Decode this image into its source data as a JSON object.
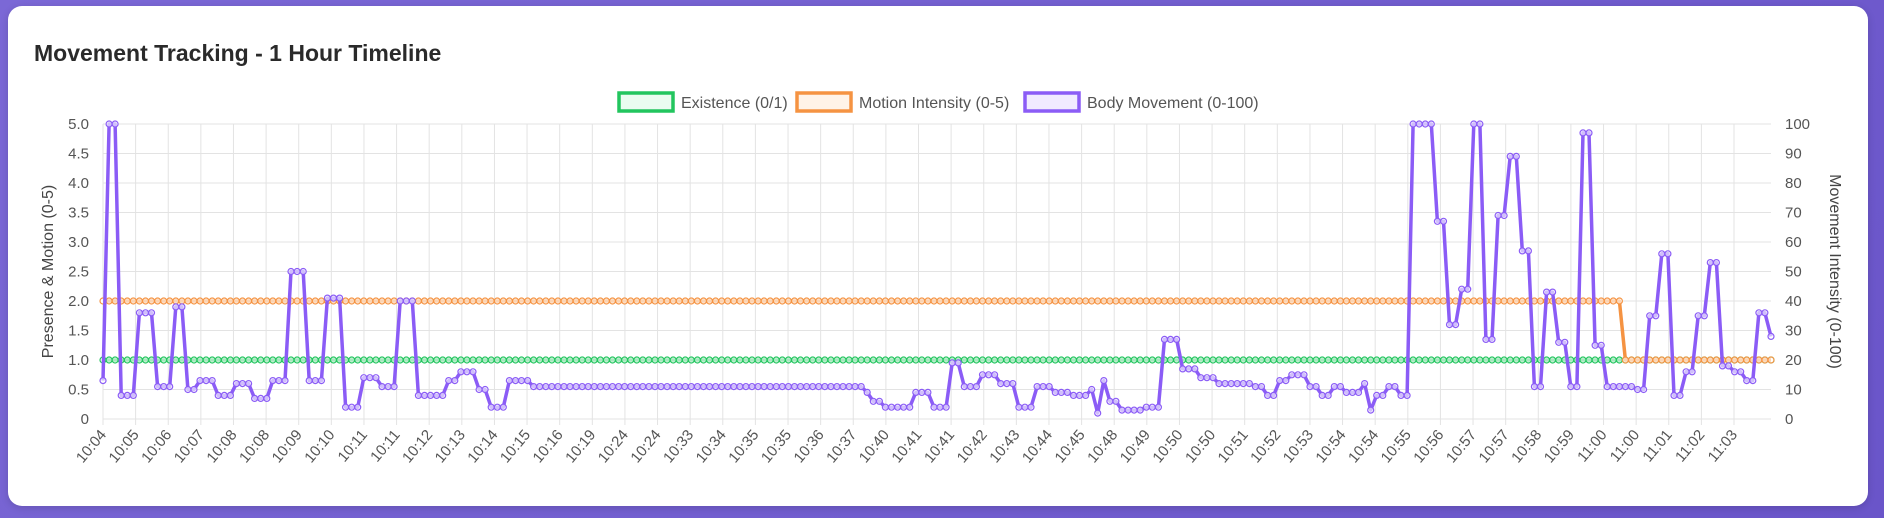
{
  "title": "Movement Tracking - 1 Hour Timeline",
  "chart_data": {
    "type": "line",
    "title": "Movement Tracking - 1 Hour Timeline",
    "legend_position": "top",
    "grid": true,
    "y_left": {
      "label": "Presence & Motion (0-5)",
      "ticks": [
        "0",
        "0.5",
        "1.0",
        "1.5",
        "2.0",
        "2.5",
        "3.0",
        "3.5",
        "4.0",
        "4.5",
        "5.0"
      ],
      "range": [
        0,
        5
      ]
    },
    "y_right": {
      "label": "Movement Intensity (0-100)",
      "ticks": [
        "0",
        "10",
        "20",
        "30",
        "40",
        "50",
        "60",
        "70",
        "80",
        "90",
        "100"
      ],
      "range": [
        0,
        100
      ]
    },
    "x_ticks": [
      "10:04",
      "10:05",
      "10:06",
      "10:07",
      "10:08",
      "10:08",
      "10:09",
      "10:10",
      "10:11",
      "10:11",
      "10:12",
      "10:13",
      "10:14",
      "10:15",
      "10:16",
      "10:19",
      "10:24",
      "10:24",
      "10:33",
      "10:34",
      "10:35",
      "10:35",
      "10:36",
      "10:37",
      "10:40",
      "10:41",
      "10:41",
      "10:42",
      "10:43",
      "10:44",
      "10:45",
      "10:48",
      "10:49",
      "10:50",
      "10:50",
      "10:51",
      "10:52",
      "10:53",
      "10:54",
      "10:54",
      "10:55",
      "10:56",
      "10:57",
      "10:57",
      "10:58",
      "10:59",
      "11:00",
      "11:00",
      "11:01",
      "11:02",
      "11:03"
    ],
    "point_count": 276,
    "series": [
      {
        "name": "Existence (0/1)",
        "axis": "left",
        "color": "#22c55e",
        "segments": [
          [
            0,
            1.0
          ],
          [
            275,
            1.0
          ]
        ]
      },
      {
        "name": "Motion Intensity (0-5)",
        "axis": "left",
        "color": "#f59342",
        "segments": [
          [
            0,
            2.0
          ],
          [
            250,
            2.0
          ],
          [
            251,
            1.0
          ],
          [
            275,
            1.0
          ]
        ]
      },
      {
        "name": "Body Movement (0-100)",
        "axis": "right",
        "color": "#8b5cf6",
        "segments": [
          [
            0,
            13
          ],
          [
            1,
            100
          ],
          [
            2,
            100
          ],
          [
            3,
            8
          ],
          [
            4,
            8
          ],
          [
            5,
            8
          ],
          [
            6,
            36
          ],
          [
            7,
            36
          ],
          [
            8,
            36
          ],
          [
            9,
            11
          ],
          [
            10,
            11
          ],
          [
            11,
            11
          ],
          [
            12,
            38
          ],
          [
            13,
            38
          ],
          [
            14,
            10
          ],
          [
            15,
            10
          ],
          [
            16,
            13
          ],
          [
            17,
            13
          ],
          [
            18,
            13
          ],
          [
            19,
            8
          ],
          [
            20,
            8
          ],
          [
            21,
            8
          ],
          [
            22,
            12
          ],
          [
            23,
            12
          ],
          [
            24,
            12
          ],
          [
            25,
            7
          ],
          [
            26,
            7
          ],
          [
            27,
            7
          ],
          [
            28,
            13
          ],
          [
            29,
            13
          ],
          [
            30,
            13
          ],
          [
            31,
            50
          ],
          [
            32,
            50
          ],
          [
            33,
            50
          ],
          [
            34,
            13
          ],
          [
            35,
            13
          ],
          [
            36,
            13
          ],
          [
            37,
            41
          ],
          [
            38,
            41
          ],
          [
            39,
            41
          ],
          [
            40,
            4
          ],
          [
            41,
            4
          ],
          [
            42,
            4
          ],
          [
            43,
            14
          ],
          [
            44,
            14
          ],
          [
            45,
            14
          ],
          [
            46,
            11
          ],
          [
            47,
            11
          ],
          [
            48,
            11
          ],
          [
            49,
            40
          ],
          [
            50,
            40
          ],
          [
            51,
            40
          ],
          [
            52,
            8
          ],
          [
            53,
            8
          ],
          [
            54,
            8
          ],
          [
            55,
            8
          ],
          [
            56,
            8
          ],
          [
            57,
            13
          ],
          [
            58,
            13
          ],
          [
            59,
            16
          ],
          [
            60,
            16
          ],
          [
            61,
            16
          ],
          [
            62,
            10
          ],
          [
            63,
            10
          ],
          [
            64,
            4
          ],
          [
            65,
            4
          ],
          [
            66,
            4
          ],
          [
            67,
            13
          ],
          [
            68,
            13
          ],
          [
            69,
            13
          ],
          [
            70,
            13
          ],
          [
            71,
            11
          ],
          [
            125,
            11
          ],
          [
            126,
            9
          ],
          [
            127,
            6
          ],
          [
            128,
            6
          ],
          [
            129,
            4
          ],
          [
            130,
            4
          ],
          [
            131,
            4
          ],
          [
            132,
            4
          ],
          [
            133,
            4
          ],
          [
            134,
            9
          ],
          [
            135,
            9
          ],
          [
            136,
            9
          ],
          [
            137,
            4
          ],
          [
            138,
            4
          ],
          [
            139,
            4
          ],
          [
            140,
            19
          ],
          [
            141,
            19
          ],
          [
            142,
            11
          ],
          [
            143,
            11
          ],
          [
            144,
            11
          ],
          [
            145,
            15
          ],
          [
            146,
            15
          ],
          [
            147,
            15
          ],
          [
            148,
            12
          ],
          [
            149,
            12
          ],
          [
            150,
            12
          ],
          [
            151,
            4
          ],
          [
            152,
            4
          ],
          [
            153,
            4
          ],
          [
            154,
            11
          ],
          [
            155,
            11
          ],
          [
            156,
            11
          ],
          [
            157,
            9
          ],
          [
            158,
            9
          ],
          [
            159,
            9
          ],
          [
            160,
            8
          ],
          [
            161,
            8
          ],
          [
            162,
            8
          ],
          [
            163,
            10
          ],
          [
            164,
            2
          ],
          [
            165,
            13
          ],
          [
            166,
            6
          ],
          [
            167,
            6
          ],
          [
            168,
            3
          ],
          [
            169,
            3
          ],
          [
            170,
            3
          ],
          [
            171,
            3
          ],
          [
            172,
            4
          ],
          [
            173,
            4
          ],
          [
            174,
            4
          ],
          [
            175,
            27
          ],
          [
            176,
            27
          ],
          [
            177,
            27
          ],
          [
            178,
            17
          ],
          [
            179,
            17
          ],
          [
            180,
            17
          ],
          [
            181,
            14
          ],
          [
            182,
            14
          ],
          [
            183,
            14
          ],
          [
            184,
            12
          ],
          [
            185,
            12
          ],
          [
            186,
            12
          ],
          [
            187,
            12
          ],
          [
            188,
            12
          ],
          [
            189,
            12
          ],
          [
            190,
            11
          ],
          [
            191,
            11
          ],
          [
            192,
            8
          ],
          [
            193,
            8
          ],
          [
            194,
            13
          ],
          [
            195,
            13
          ],
          [
            196,
            15
          ],
          [
            197,
            15
          ],
          [
            198,
            15
          ],
          [
            199,
            11
          ],
          [
            200,
            11
          ],
          [
            201,
            8
          ],
          [
            202,
            8
          ],
          [
            203,
            11
          ],
          [
            204,
            11
          ],
          [
            205,
            9
          ],
          [
            206,
            9
          ],
          [
            207,
            9
          ],
          [
            208,
            12
          ],
          [
            209,
            3
          ],
          [
            210,
            8
          ],
          [
            211,
            8
          ],
          [
            212,
            11
          ],
          [
            213,
            11
          ],
          [
            214,
            8
          ],
          [
            215,
            8
          ],
          [
            216,
            100
          ],
          [
            217,
            100
          ],
          [
            218,
            100
          ],
          [
            219,
            100
          ],
          [
            220,
            67
          ],
          [
            221,
            67
          ],
          [
            222,
            32
          ],
          [
            223,
            32
          ],
          [
            224,
            44
          ],
          [
            225,
            44
          ],
          [
            226,
            100
          ],
          [
            227,
            100
          ],
          [
            228,
            27
          ],
          [
            229,
            27
          ],
          [
            230,
            69
          ],
          [
            231,
            69
          ],
          [
            232,
            89
          ],
          [
            233,
            89
          ],
          [
            234,
            57
          ],
          [
            235,
            57
          ],
          [
            236,
            11
          ],
          [
            237,
            11
          ],
          [
            238,
            43
          ],
          [
            239,
            43
          ],
          [
            240,
            26
          ],
          [
            241,
            26
          ],
          [
            242,
            11
          ],
          [
            243,
            11
          ],
          [
            244,
            97
          ],
          [
            245,
            97
          ],
          [
            246,
            25
          ],
          [
            247,
            25
          ],
          [
            248,
            11
          ],
          [
            249,
            11
          ],
          [
            250,
            11
          ],
          [
            251,
            11
          ],
          [
            252,
            11
          ],
          [
            253,
            10
          ],
          [
            254,
            10
          ],
          [
            255,
            35
          ],
          [
            256,
            35
          ],
          [
            257,
            56
          ],
          [
            258,
            56
          ],
          [
            259,
            8
          ],
          [
            260,
            8
          ],
          [
            261,
            16
          ],
          [
            262,
            16
          ],
          [
            263,
            35
          ],
          [
            264,
            35
          ],
          [
            265,
            53
          ],
          [
            266,
            53
          ],
          [
            267,
            18
          ],
          [
            268,
            18
          ],
          [
            269,
            16
          ],
          [
            270,
            16
          ],
          [
            271,
            13
          ],
          [
            272,
            13
          ],
          [
            273,
            36
          ],
          [
            274,
            36
          ],
          [
            275,
            28
          ]
        ]
      }
    ]
  }
}
